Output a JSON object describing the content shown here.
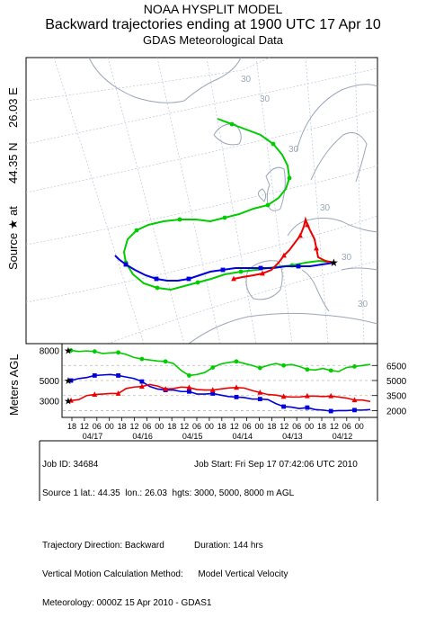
{
  "header": {
    "line1": "NOAA HYSPLIT MODEL",
    "line2": "Backward trajectories ending at 1900 UTC 17 Apr 10",
    "line3": "GDAS Meteorological Data"
  },
  "map": {
    "source_label": "Source ★ at",
    "lat_label": "44.35 N",
    "lon_label": "26.03 E",
    "lat_ticks": [
      "30",
      "30",
      "30",
      "30",
      "30",
      "30"
    ]
  },
  "chart_data": {
    "type": "line",
    "ylabel": "Meters AGL",
    "y_ticks_left": [
      "8000",
      "5000",
      "3000"
    ],
    "y_ticks_right": [
      "6500",
      "5000",
      "3500",
      "2000"
    ],
    "x_hour_labels": [
      "18",
      "12",
      "06",
      "00",
      "18",
      "12",
      "06",
      "00",
      "18",
      "12",
      "06",
      "00",
      "18",
      "12",
      "06",
      "00",
      "18",
      "12",
      "06",
      "00",
      "18",
      "12",
      "06",
      "00"
    ],
    "x_date_labels": [
      "04/17",
      "04/16",
      "04/15",
      "04/14",
      "04/13",
      "04/12"
    ],
    "x_hours_back": [
      0,
      144
    ],
    "series": [
      {
        "color": "#00cc00",
        "marker": "circle",
        "start_height": 8000,
        "heights": [
          8000,
          7900,
          7950,
          7900,
          7700,
          7750,
          7800,
          7600,
          7300,
          7150,
          7050,
          6950,
          6900,
          6700,
          6000,
          5500,
          5600,
          5800,
          6300,
          6650,
          6800,
          6900,
          6700,
          6500,
          6250,
          6500,
          6700,
          6500,
          6600,
          6400,
          6100,
          6050,
          6200,
          6000,
          5900,
          6300,
          6400,
          6500,
          6600
        ]
      },
      {
        "color": "#0000dd",
        "marker": "square",
        "start_height": 5000,
        "heights": [
          5000,
          5200,
          5300,
          5500,
          5550,
          5600,
          5500,
          5350,
          5200,
          4900,
          4400,
          4150,
          4050,
          4050,
          3900,
          3900,
          3650,
          3650,
          3700,
          3550,
          3400,
          3350,
          3300,
          3150,
          3150,
          3100,
          2700,
          2400,
          2350,
          2200,
          2300,
          2100,
          2050,
          1950,
          2000,
          2000,
          2050,
          2050,
          2100
        ]
      },
      {
        "color": "#ee0000",
        "marker": "triangle",
        "start_height": 3000,
        "heights": [
          3000,
          3100,
          3500,
          3600,
          3650,
          3700,
          3700,
          4200,
          4350,
          4400,
          4600,
          4450,
          4150,
          4200,
          4350,
          4300,
          4100,
          4050,
          4050,
          4150,
          4250,
          4300,
          4250,
          4000,
          3800,
          3600,
          3550,
          3400,
          3350,
          3350,
          3450,
          3450,
          3400,
          3450,
          3350,
          3250,
          3050,
          3050,
          2900
        ]
      }
    ]
  },
  "info": {
    "job_id": "Job ID: 34684",
    "job_start": "Job Start: Fri Sep 17 07:42:06 UTC 2010",
    "source_line": "Source 1 lat.: 44.35  lon.: 26.03  hgts: 3000, 5000, 8000 m AGL",
    "direction": "Trajectory Direction: Backward",
    "duration": "Duration: 144 hrs",
    "vertical": "Vertical Motion Calculation Method:      Model Vertical Velocity",
    "meteorology": "Meteorology: 0000Z 15 Apr 2010 - GDAS1"
  },
  "colors": {
    "green": "#00cc00",
    "blue": "#0000dd",
    "red": "#ee0000",
    "land": "#9aa6b8",
    "grid": "#bcc6d2"
  }
}
